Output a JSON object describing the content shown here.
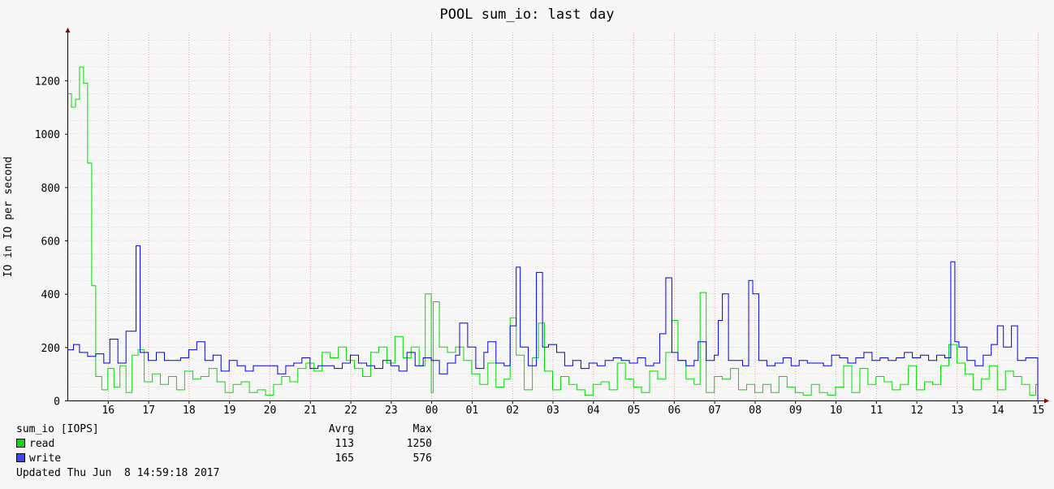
{
  "chart_data": {
    "type": "line",
    "title": "POOL sum_io: last day",
    "ylabel": "IO in IO per second",
    "xlabel": "",
    "ylim": [
      0,
      1380
    ],
    "yticks": [
      0,
      200,
      400,
      600,
      800,
      1000,
      1200
    ],
    "x_range_hours": [
      15.0,
      39.0
    ],
    "x_ticks": [
      {
        "hour": 16,
        "label": "16"
      },
      {
        "hour": 17,
        "label": "17"
      },
      {
        "hour": 18,
        "label": "18"
      },
      {
        "hour": 19,
        "label": "19"
      },
      {
        "hour": 20,
        "label": "20"
      },
      {
        "hour": 21,
        "label": "21"
      },
      {
        "hour": 22,
        "label": "22"
      },
      {
        "hour": 23,
        "label": "23"
      },
      {
        "hour": 24,
        "label": "00"
      },
      {
        "hour": 25,
        "label": "01"
      },
      {
        "hour": 26,
        "label": "02"
      },
      {
        "hour": 27,
        "label": "03"
      },
      {
        "hour": 28,
        "label": "04"
      },
      {
        "hour": 29,
        "label": "05"
      },
      {
        "hour": 30,
        "label": "06"
      },
      {
        "hour": 31,
        "label": "07"
      },
      {
        "hour": 32,
        "label": "08"
      },
      {
        "hour": 33,
        "label": "09"
      },
      {
        "hour": 34,
        "label": "10"
      },
      {
        "hour": 35,
        "label": "11"
      },
      {
        "hour": 36,
        "label": "12"
      },
      {
        "hour": 37,
        "label": "13"
      },
      {
        "hour": 38,
        "label": "14"
      },
      {
        "hour": 39,
        "label": "15"
      }
    ],
    "grid": true,
    "legend_position": "bottom-left",
    "series": [
      {
        "name": "read",
        "color": "#00e000",
        "points": [
          [
            15.0,
            1150
          ],
          [
            15.1,
            1100
          ],
          [
            15.2,
            1130
          ],
          [
            15.3,
            1250
          ],
          [
            15.4,
            1190
          ],
          [
            15.5,
            890
          ],
          [
            15.6,
            430
          ],
          [
            15.7,
            90
          ],
          [
            15.85,
            40
          ],
          [
            16.0,
            120
          ],
          [
            16.15,
            50
          ],
          [
            16.3,
            130
          ],
          [
            16.45,
            30
          ],
          [
            16.6,
            170
          ],
          [
            16.75,
            190
          ],
          [
            16.9,
            70
          ],
          [
            17.1,
            100
          ],
          [
            17.3,
            60
          ],
          [
            17.5,
            90
          ],
          [
            17.7,
            40
          ],
          [
            17.9,
            110
          ],
          [
            18.1,
            80
          ],
          [
            18.3,
            90
          ],
          [
            18.5,
            120
          ],
          [
            18.7,
            70
          ],
          [
            18.9,
            30
          ],
          [
            19.1,
            60
          ],
          [
            19.3,
            70
          ],
          [
            19.5,
            30
          ],
          [
            19.7,
            40
          ],
          [
            19.9,
            20
          ],
          [
            20.1,
            60
          ],
          [
            20.3,
            90
          ],
          [
            20.5,
            70
          ],
          [
            20.7,
            120
          ],
          [
            20.9,
            140
          ],
          [
            21.1,
            110
          ],
          [
            21.3,
            180
          ],
          [
            21.5,
            160
          ],
          [
            21.7,
            200
          ],
          [
            21.9,
            150
          ],
          [
            22.1,
            120
          ],
          [
            22.3,
            90
          ],
          [
            22.5,
            180
          ],
          [
            22.7,
            200
          ],
          [
            22.9,
            140
          ],
          [
            23.1,
            240
          ],
          [
            23.3,
            160
          ],
          [
            23.5,
            200
          ],
          [
            23.7,
            130
          ],
          [
            23.85,
            400
          ],
          [
            24.0,
            30
          ],
          [
            24.05,
            370
          ],
          [
            24.2,
            200
          ],
          [
            24.4,
            180
          ],
          [
            24.6,
            200
          ],
          [
            24.8,
            150
          ],
          [
            25.0,
            100
          ],
          [
            25.2,
            60
          ],
          [
            25.4,
            140
          ],
          [
            25.6,
            50
          ],
          [
            25.8,
            80
          ],
          [
            25.95,
            310
          ],
          [
            26.1,
            170
          ],
          [
            26.3,
            40
          ],
          [
            26.5,
            160
          ],
          [
            26.65,
            290
          ],
          [
            26.8,
            110
          ],
          [
            27.0,
            40
          ],
          [
            27.2,
            90
          ],
          [
            27.4,
            60
          ],
          [
            27.6,
            40
          ],
          [
            27.8,
            20
          ],
          [
            28.0,
            60
          ],
          [
            28.2,
            70
          ],
          [
            28.4,
            40
          ],
          [
            28.6,
            140
          ],
          [
            28.8,
            80
          ],
          [
            29.0,
            50
          ],
          [
            29.2,
            30
          ],
          [
            29.4,
            110
          ],
          [
            29.6,
            80
          ],
          [
            29.8,
            180
          ],
          [
            29.95,
            300
          ],
          [
            30.1,
            150
          ],
          [
            30.3,
            80
          ],
          [
            30.5,
            60
          ],
          [
            30.65,
            405
          ],
          [
            30.8,
            30
          ],
          [
            31.0,
            90
          ],
          [
            31.2,
            80
          ],
          [
            31.4,
            120
          ],
          [
            31.6,
            40
          ],
          [
            31.8,
            60
          ],
          [
            32.0,
            30
          ],
          [
            32.2,
            60
          ],
          [
            32.4,
            30
          ],
          [
            32.6,
            90
          ],
          [
            32.8,
            50
          ],
          [
            33.0,
            30
          ],
          [
            33.2,
            20
          ],
          [
            33.4,
            60
          ],
          [
            33.6,
            30
          ],
          [
            33.8,
            20
          ],
          [
            34.0,
            50
          ],
          [
            34.2,
            130
          ],
          [
            34.4,
            30
          ],
          [
            34.6,
            120
          ],
          [
            34.8,
            60
          ],
          [
            35.0,
            90
          ],
          [
            35.2,
            70
          ],
          [
            35.4,
            40
          ],
          [
            35.6,
            60
          ],
          [
            35.8,
            130
          ],
          [
            36.0,
            40
          ],
          [
            36.2,
            70
          ],
          [
            36.4,
            60
          ],
          [
            36.6,
            130
          ],
          [
            36.8,
            210
          ],
          [
            37.0,
            140
          ],
          [
            37.2,
            100
          ],
          [
            37.4,
            40
          ],
          [
            37.6,
            80
          ],
          [
            37.8,
            130
          ],
          [
            38.0,
            40
          ],
          [
            38.2,
            110
          ],
          [
            38.4,
            90
          ],
          [
            38.6,
            60
          ],
          [
            38.8,
            20
          ],
          [
            38.95,
            60
          ],
          [
            39.0,
            0
          ]
        ]
      },
      {
        "name": "write",
        "color": "#0000ff",
        "points": [
          [
            15.0,
            190
          ],
          [
            15.15,
            210
          ],
          [
            15.3,
            180
          ],
          [
            15.5,
            165
          ],
          [
            15.7,
            175
          ],
          [
            15.9,
            140
          ],
          [
            16.05,
            230
          ],
          [
            16.25,
            140
          ],
          [
            16.45,
            260
          ],
          [
            16.7,
            580
          ],
          [
            16.8,
            180
          ],
          [
            17.0,
            150
          ],
          [
            17.2,
            180
          ],
          [
            17.4,
            150
          ],
          [
            17.6,
            150
          ],
          [
            17.8,
            160
          ],
          [
            18.0,
            190
          ],
          [
            18.2,
            220
          ],
          [
            18.4,
            150
          ],
          [
            18.6,
            170
          ],
          [
            18.8,
            110
          ],
          [
            19.0,
            150
          ],
          [
            19.2,
            130
          ],
          [
            19.4,
            110
          ],
          [
            19.6,
            130
          ],
          [
            19.8,
            130
          ],
          [
            20.0,
            130
          ],
          [
            20.2,
            100
          ],
          [
            20.4,
            130
          ],
          [
            20.6,
            140
          ],
          [
            20.8,
            160
          ],
          [
            21.0,
            120
          ],
          [
            21.2,
            130
          ],
          [
            21.4,
            130
          ],
          [
            21.6,
            120
          ],
          [
            21.8,
            140
          ],
          [
            22.0,
            170
          ],
          [
            22.2,
            140
          ],
          [
            22.4,
            130
          ],
          [
            22.6,
            120
          ],
          [
            22.8,
            150
          ],
          [
            23.0,
            130
          ],
          [
            23.2,
            110
          ],
          [
            23.4,
            180
          ],
          [
            23.6,
            130
          ],
          [
            23.8,
            160
          ],
          [
            24.0,
            150
          ],
          [
            24.2,
            100
          ],
          [
            24.4,
            140
          ],
          [
            24.6,
            170
          ],
          [
            24.7,
            290
          ],
          [
            24.9,
            200
          ],
          [
            25.1,
            120
          ],
          [
            25.3,
            180
          ],
          [
            25.4,
            220
          ],
          [
            25.6,
            140
          ],
          [
            25.8,
            130
          ],
          [
            25.95,
            280
          ],
          [
            26.1,
            500
          ],
          [
            26.2,
            200
          ],
          [
            26.4,
            130
          ],
          [
            26.6,
            480
          ],
          [
            26.75,
            200
          ],
          [
            26.9,
            210
          ],
          [
            27.1,
            180
          ],
          [
            27.3,
            130
          ],
          [
            27.5,
            150
          ],
          [
            27.7,
            120
          ],
          [
            27.9,
            140
          ],
          [
            28.1,
            130
          ],
          [
            28.3,
            150
          ],
          [
            28.5,
            160
          ],
          [
            28.7,
            150
          ],
          [
            28.9,
            140
          ],
          [
            29.1,
            160
          ],
          [
            29.3,
            130
          ],
          [
            29.5,
            140
          ],
          [
            29.65,
            250
          ],
          [
            29.8,
            460
          ],
          [
            29.95,
            180
          ],
          [
            30.1,
            150
          ],
          [
            30.3,
            130
          ],
          [
            30.5,
            150
          ],
          [
            30.6,
            220
          ],
          [
            30.8,
            150
          ],
          [
            31.0,
            170
          ],
          [
            31.1,
            300
          ],
          [
            31.2,
            400
          ],
          [
            31.35,
            150
          ],
          [
            31.55,
            150
          ],
          [
            31.7,
            130
          ],
          [
            31.85,
            450
          ],
          [
            31.95,
            400
          ],
          [
            32.1,
            150
          ],
          [
            32.3,
            130
          ],
          [
            32.5,
            140
          ],
          [
            32.7,
            160
          ],
          [
            32.9,
            130
          ],
          [
            33.1,
            150
          ],
          [
            33.3,
            140
          ],
          [
            33.5,
            140
          ],
          [
            33.7,
            130
          ],
          [
            33.9,
            170
          ],
          [
            34.1,
            160
          ],
          [
            34.3,
            140
          ],
          [
            34.5,
            160
          ],
          [
            34.7,
            180
          ],
          [
            34.9,
            150
          ],
          [
            35.1,
            160
          ],
          [
            35.3,
            150
          ],
          [
            35.5,
            160
          ],
          [
            35.7,
            180
          ],
          [
            35.9,
            160
          ],
          [
            36.1,
            170
          ],
          [
            36.3,
            150
          ],
          [
            36.5,
            170
          ],
          [
            36.7,
            160
          ],
          [
            36.85,
            520
          ],
          [
            36.95,
            220
          ],
          [
            37.05,
            200
          ],
          [
            37.25,
            150
          ],
          [
            37.45,
            130
          ],
          [
            37.65,
            170
          ],
          [
            37.85,
            210
          ],
          [
            38.0,
            280
          ],
          [
            38.15,
            200
          ],
          [
            38.35,
            280
          ],
          [
            38.5,
            150
          ],
          [
            38.7,
            160
          ],
          [
            38.9,
            160
          ],
          [
            39.0,
            0
          ]
        ]
      }
    ]
  },
  "legend": {
    "header": "sum_io [IOPS]",
    "avg_header": "Avrg",
    "max_header": "Max",
    "rows": [
      {
        "label": "read",
        "color": "#00e000",
        "avg": "113",
        "max": "1250"
      },
      {
        "label": "write",
        "color": "#4040ff",
        "avg": "165",
        "max": "576"
      }
    ],
    "updated": "Updated Thu Jun  8 14:59:18 2017"
  }
}
